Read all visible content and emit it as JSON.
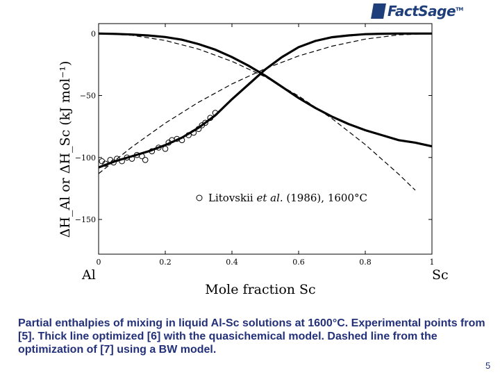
{
  "logo": {
    "name": "FactSage",
    "tm": "TM"
  },
  "chart_data": {
    "type": "line",
    "xlabel": "Mole fraction Sc",
    "ylabel": "ΔH_Al or ΔH_Sc (kJ mol⁻¹)",
    "xlim": [
      0,
      1
    ],
    "ylim": [
      -178,
      8
    ],
    "x_ticks": [
      "0",
      "0.2",
      "0.4",
      "0.6",
      "0.8",
      "1"
    ],
    "y_ticks": [
      "0",
      "−50",
      "−100",
      "−150"
    ],
    "left_end_label": "Al",
    "right_end_label": "Sc",
    "legend": {
      "symbol": "○",
      "text_pre": "Litovskii ",
      "text_italic": "et al.",
      "text_post": " (1986), 1600°C",
      "position": "center-right"
    },
    "series": [
      {
        "style": "thick-solid",
        "x": [
          0,
          0.05,
          0.1,
          0.15,
          0.2,
          0.25,
          0.3,
          0.35,
          0.4,
          0.45,
          0.5,
          0.55,
          0.6,
          0.65,
          0.7,
          0.75,
          0.8,
          0.85,
          0.9,
          0.95,
          1.0
        ],
        "y": [
          0,
          -0.3,
          -0.8,
          -1.6,
          -2.8,
          -5,
          -8.5,
          -13,
          -19,
          -26,
          -34,
          -43,
          -52,
          -60,
          -67,
          -73,
          -78,
          -82,
          -86,
          -88,
          -91
        ]
      },
      {
        "style": "thick-solid",
        "x": [
          0,
          0.05,
          0.1,
          0.15,
          0.2,
          0.25,
          0.3,
          0.35,
          0.4,
          0.45,
          0.5,
          0.55,
          0.6,
          0.65,
          0.7,
          0.75,
          0.8,
          0.85,
          0.9,
          0.95,
          1.0
        ],
        "y": [
          -108,
          -103,
          -99,
          -95,
          -90,
          -84,
          -76,
          -66,
          -53,
          -41,
          -29,
          -19,
          -11,
          -6,
          -3,
          -1.5,
          -0.5,
          -0.2,
          0,
          0,
          0
        ]
      },
      {
        "style": "dashed",
        "x": [
          0,
          0.1,
          0.2,
          0.3,
          0.4,
          0.5,
          0.6,
          0.7,
          0.8,
          0.9,
          0.95
        ],
        "y": [
          0,
          -1.4,
          -5.6,
          -12.6,
          -22.4,
          -35,
          -50.4,
          -68.6,
          -89.6,
          -113.4,
          -126.4
        ]
      },
      {
        "style": "dashed",
        "x": [
          0,
          0.1,
          0.2,
          0.3,
          0.4,
          0.5,
          0.6,
          0.7,
          0.8,
          0.9,
          1.0
        ],
        "y": [
          -113,
          -91.5,
          -72.3,
          -55.4,
          -40.7,
          -28.3,
          -18.1,
          -10.2,
          -4.5,
          -1.1,
          0
        ]
      },
      {
        "style": "circles",
        "x": [
          0.01,
          0.02,
          0.035,
          0.045,
          0.055,
          0.07,
          0.085,
          0.1,
          0.115,
          0.13,
          0.14,
          0.16,
          0.18,
          0.2,
          0.21,
          0.22,
          0.235,
          0.25,
          0.27,
          0.285,
          0.3,
          0.31,
          0.32,
          0.335,
          0.35
        ],
        "y": [
          -103,
          -105,
          -102,
          -104,
          -101,
          -103,
          -100,
          -101,
          -98,
          -99,
          -102,
          -95,
          -92,
          -93,
          -88,
          -86,
          -85,
          -86,
          -82,
          -80,
          -77,
          -74,
          -72,
          -68,
          -64
        ]
      }
    ]
  },
  "caption": "Partial enthalpies of mixing in liquid Al-Sc solutions at 1600°C. Experimental points from [5]. Thick line optimized [6] with the quasichemical model. Dashed line from the optimization of [7] using a BW model.",
  "page_number": "5"
}
